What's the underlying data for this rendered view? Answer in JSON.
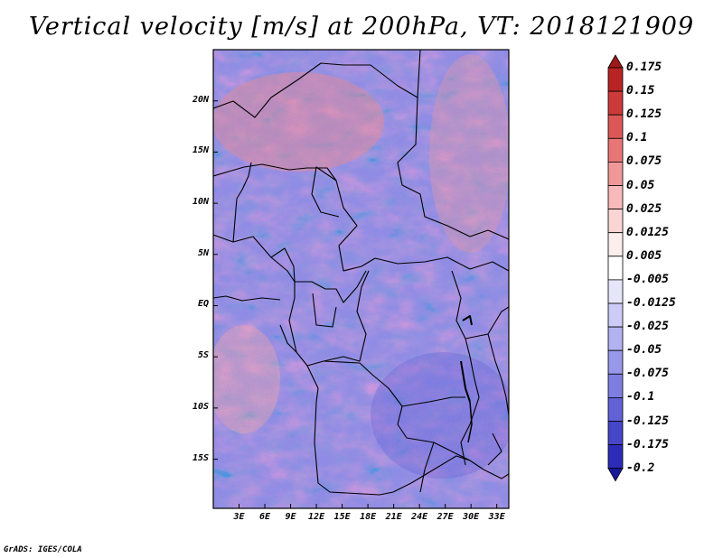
{
  "title": "Vertical velocity [m/s] at 200hPa, VT: 2018121909",
  "credit": "GrADS: IGES/COLA",
  "map": {
    "lat_labels": [
      "20N",
      "15N",
      "10N",
      "5N",
      "EQ",
      "5S",
      "10S",
      "15S"
    ],
    "lon_labels": [
      "3E",
      "6E",
      "9E",
      "12E",
      "15E",
      "18E",
      "21E",
      "24E",
      "27E",
      "30E",
      "33E"
    ],
    "lat_values": [
      20,
      15,
      10,
      5,
      0,
      -5,
      -10,
      -15
    ],
    "lon_values": [
      3,
      6,
      9,
      12,
      15,
      18,
      21,
      24,
      27,
      30,
      33
    ],
    "extent": {
      "lon_min": 0,
      "lon_max": 34.4,
      "lat_min": -19.8,
      "lat_max": 25
    }
  },
  "colorbar": {
    "levels": [
      "0.175",
      "0.15",
      "0.125",
      "0.1",
      "0.075",
      "0.05",
      "0.025",
      "0.0125",
      "0.005",
      "-0.005",
      "-0.0125",
      "-0.025",
      "-0.05",
      "-0.075",
      "-0.1",
      "-0.125",
      "-0.175",
      "-0.2"
    ],
    "colors": [
      "#a01818",
      "#b82424",
      "#cc3a3a",
      "#dc5858",
      "#e87676",
      "#f09898",
      "#f7b9b9",
      "#fbd5d5",
      "#fdeeee",
      "#ffffff",
      "#e6e6fa",
      "#ccccf6",
      "#b2b2f0",
      "#9898ea",
      "#7e7ee2",
      "#6262d6",
      "#4646c8",
      "#2c2cb8",
      "#18189c"
    ]
  }
}
